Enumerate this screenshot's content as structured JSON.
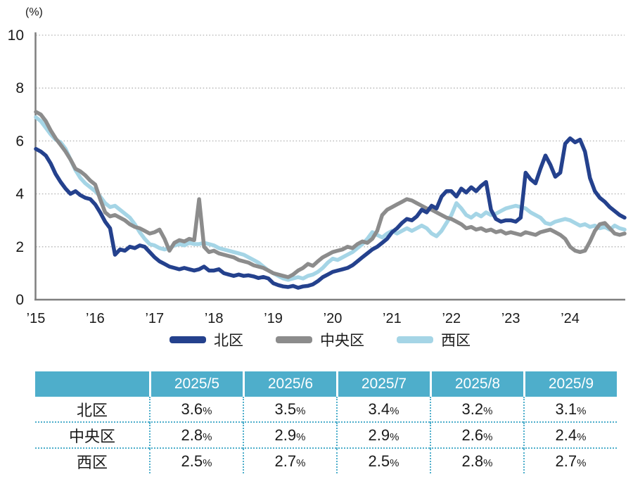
{
  "chart_data": {
    "type": "line",
    "title": "",
    "ylabel": "(%)",
    "ylim": [
      0,
      10
    ],
    "y_ticks": [
      0,
      2,
      4,
      6,
      8,
      10
    ],
    "x_tick_labels": [
      "’15",
      "’16",
      "’17",
      "’18",
      "’19",
      "’20",
      "’21",
      "’22",
      "’23",
      "’24"
    ],
    "x_start": "2015-01",
    "x_interval": "monthly",
    "grid": "horizontal-dotted",
    "legend_position": "bottom",
    "series": [
      {
        "id": "kita",
        "name": "北区",
        "color": "#24418D",
        "values": [
          5.7,
          5.6,
          5.45,
          5.15,
          4.75,
          4.45,
          4.2,
          4.0,
          4.1,
          3.95,
          3.85,
          3.8,
          3.6,
          3.3,
          2.95,
          2.7,
          1.7,
          1.9,
          1.85,
          2.0,
          1.95,
          2.05,
          2.0,
          1.8,
          1.6,
          1.45,
          1.35,
          1.25,
          1.2,
          1.15,
          1.2,
          1.15,
          1.1,
          1.15,
          1.25,
          1.1,
          1.1,
          1.15,
          1.0,
          0.95,
          0.9,
          0.95,
          0.9,
          0.92,
          0.88,
          0.82,
          0.86,
          0.8,
          0.62,
          0.55,
          0.5,
          0.48,
          0.52,
          0.45,
          0.5,
          0.52,
          0.58,
          0.7,
          0.85,
          0.95,
          1.05,
          1.1,
          1.15,
          1.2,
          1.3,
          1.45,
          1.6,
          1.75,
          1.9,
          2.0,
          2.15,
          2.3,
          2.55,
          2.7,
          2.9,
          3.05,
          3.0,
          3.15,
          3.4,
          3.3,
          3.55,
          3.45,
          3.9,
          4.1,
          4.1,
          3.9,
          4.2,
          4.05,
          4.25,
          4.1,
          4.3,
          4.45,
          3.4,
          3.05,
          2.95,
          3.0,
          3.0,
          2.95,
          3.1,
          4.8,
          4.55,
          4.4,
          4.95,
          5.45,
          5.1,
          4.65,
          4.8,
          5.9,
          6.1,
          5.95,
          6.05,
          5.6,
          4.6,
          4.1,
          3.85,
          3.7,
          3.5,
          3.35,
          3.2,
          3.1
        ]
      },
      {
        "id": "chuo",
        "name": "中央区",
        "color": "#8C8C8C",
        "values": [
          7.1,
          7.0,
          6.75,
          6.4,
          6.1,
          5.85,
          5.6,
          5.3,
          4.95,
          4.85,
          4.7,
          4.5,
          4.35,
          3.8,
          3.3,
          3.15,
          3.2,
          3.1,
          3.0,
          2.85,
          2.75,
          2.7,
          2.6,
          2.5,
          2.55,
          2.65,
          2.3,
          1.85,
          2.15,
          2.25,
          2.2,
          2.3,
          2.25,
          3.8,
          2.0,
          1.8,
          1.85,
          1.75,
          1.7,
          1.65,
          1.6,
          1.5,
          1.45,
          1.4,
          1.3,
          1.25,
          1.2,
          1.1,
          1.0,
          0.95,
          0.9,
          0.85,
          0.95,
          1.1,
          1.2,
          1.35,
          1.28,
          1.45,
          1.6,
          1.7,
          1.8,
          1.85,
          1.9,
          2.0,
          1.95,
          2.1,
          2.2,
          2.15,
          2.3,
          2.6,
          3.2,
          3.4,
          3.5,
          3.6,
          3.7,
          3.8,
          3.75,
          3.65,
          3.55,
          3.45,
          3.4,
          3.3,
          3.2,
          3.1,
          3.05,
          2.95,
          2.85,
          2.7,
          2.75,
          2.65,
          2.7,
          2.6,
          2.65,
          2.55,
          2.6,
          2.5,
          2.55,
          2.5,
          2.45,
          2.55,
          2.5,
          2.45,
          2.55,
          2.6,
          2.65,
          2.55,
          2.45,
          2.3,
          2.0,
          1.85,
          1.8,
          1.85,
          2.2,
          2.6,
          2.85,
          2.9,
          2.7,
          2.5,
          2.45,
          2.5
        ]
      },
      {
        "id": "nishi",
        "name": "西区",
        "color": "#A5D5E6",
        "values": [
          6.9,
          6.75,
          6.5,
          6.25,
          6.05,
          5.95,
          5.7,
          5.3,
          4.9,
          4.6,
          4.4,
          4.25,
          4.1,
          3.9,
          3.65,
          3.5,
          3.55,
          3.4,
          3.25,
          3.1,
          2.85,
          2.55,
          2.3,
          2.1,
          2.05,
          1.95,
          1.9,
          1.95,
          2.05,
          2.1,
          2.05,
          2.15,
          2.1,
          2.1,
          2.15,
          2.1,
          2.05,
          1.95,
          1.9,
          1.85,
          1.8,
          1.75,
          1.7,
          1.6,
          1.5,
          1.4,
          1.25,
          1.1,
          1.0,
          0.9,
          0.8,
          0.75,
          0.8,
          0.85,
          0.8,
          0.9,
          0.95,
          1.05,
          1.2,
          1.4,
          1.55,
          1.5,
          1.6,
          1.7,
          1.8,
          1.95,
          2.1,
          2.3,
          2.55,
          2.45,
          2.35,
          2.5,
          2.6,
          2.5,
          2.6,
          2.7,
          2.6,
          2.7,
          2.8,
          2.7,
          2.5,
          2.4,
          2.6,
          2.9,
          3.2,
          3.65,
          3.45,
          3.2,
          3.1,
          3.25,
          3.15,
          3.3,
          3.2,
          3.25,
          3.35,
          3.45,
          3.5,
          3.55,
          3.5,
          3.45,
          3.3,
          3.2,
          3.1,
          2.9,
          2.85,
          2.95,
          3.0,
          3.05,
          3.0,
          2.9,
          2.8,
          2.85,
          2.75,
          2.8,
          2.7,
          2.75,
          2.65,
          2.8,
          2.7,
          2.65
        ]
      }
    ]
  },
  "legend": {
    "items": [
      {
        "id": "kita",
        "label": "北区",
        "color": "#24418D"
      },
      {
        "id": "chuo",
        "label": "中央区",
        "color": "#8C8C8C"
      },
      {
        "id": "nishi",
        "label": "西区",
        "color": "#A5D5E6"
      }
    ]
  },
  "table": {
    "columns": [
      "2025/5",
      "2025/6",
      "2025/7",
      "2025/8",
      "2025/9"
    ],
    "unit": "%",
    "rows": [
      {
        "id": "kita",
        "label": "北区",
        "values": [
          "3.6",
          "3.5",
          "3.4",
          "3.2",
          "3.1"
        ]
      },
      {
        "id": "chuo",
        "label": "中央区",
        "values": [
          "2.8",
          "2.9",
          "2.9",
          "2.6",
          "2.4"
        ]
      },
      {
        "id": "nishi",
        "label": "西区",
        "values": [
          "2.5",
          "2.7",
          "2.5",
          "2.8",
          "2.7"
        ]
      }
    ],
    "header_bg": "#4EAECB",
    "border_color": "#4EAECB"
  },
  "colors": {
    "axis": "#7F7F7F",
    "gridline": "#B3B3B3",
    "text": "#1A1A1A"
  }
}
